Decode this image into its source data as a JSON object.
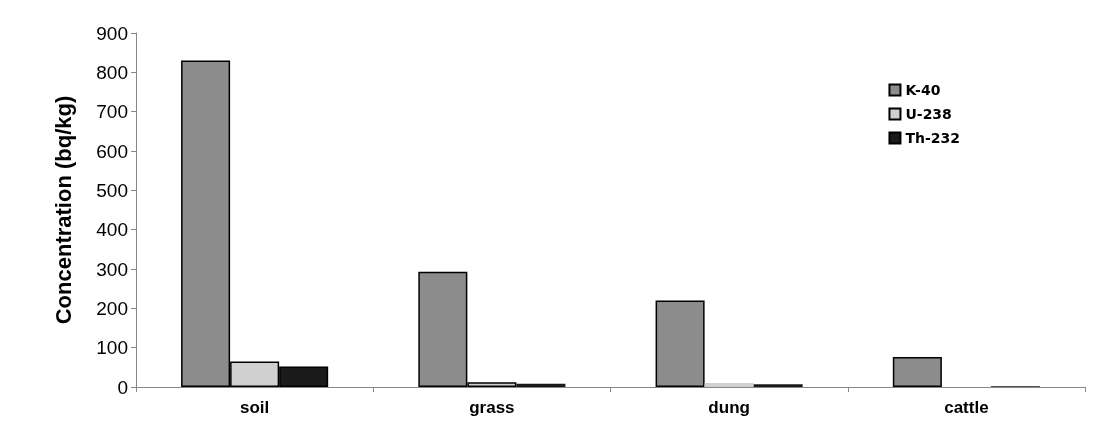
{
  "chart_data": {
    "type": "bar",
    "ylabel": "Concentration (bq/kg)",
    "categories": [
      "soil",
      "grass",
      "dung",
      "cattle"
    ],
    "series": [
      {
        "name": "K-40",
        "color": "#8c8c8c",
        "values": [
          830,
          293,
          220,
          76
        ]
      },
      {
        "name": "U-238",
        "color": "#d0d0d0",
        "values": [
          65,
          12,
          10,
          null
        ]
      },
      {
        "name": "Th-232",
        "color": "#1a1a1a",
        "values": [
          52,
          8,
          7,
          2
        ]
      }
    ],
    "ylim": [
      0,
      900
    ],
    "yticks": [
      0,
      100,
      200,
      300,
      400,
      500,
      600,
      700,
      800,
      900
    ],
    "grid": false,
    "legend": "top right"
  }
}
